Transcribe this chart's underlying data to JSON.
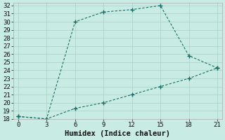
{
  "line1_x": [
    0,
    3,
    6,
    9,
    12,
    15,
    18,
    21
  ],
  "line1_y": [
    18.3,
    18.0,
    30.0,
    31.2,
    31.5,
    32.0,
    25.8,
    24.3
  ],
  "line2_x": [
    0,
    3,
    6,
    9,
    12,
    15,
    18,
    21
  ],
  "line2_y": [
    18.3,
    18.0,
    19.3,
    20.0,
    21.0,
    22.0,
    23.0,
    24.3
  ],
  "line_color": "#1a6e65",
  "bg_color": "#c8ebe4",
  "grid_color": "#aed4cc",
  "xlabel": "Humidex (Indice chaleur)",
  "xlim": [
    -0.5,
    21.5
  ],
  "ylim": [
    18,
    32.3
  ],
  "xticks": [
    0,
    3,
    6,
    9,
    12,
    15,
    18,
    21
  ],
  "yticks": [
    18,
    19,
    20,
    21,
    22,
    23,
    24,
    25,
    26,
    27,
    28,
    29,
    30,
    31,
    32
  ],
  "label_fontsize": 7.5,
  "tick_fontsize": 6.5
}
